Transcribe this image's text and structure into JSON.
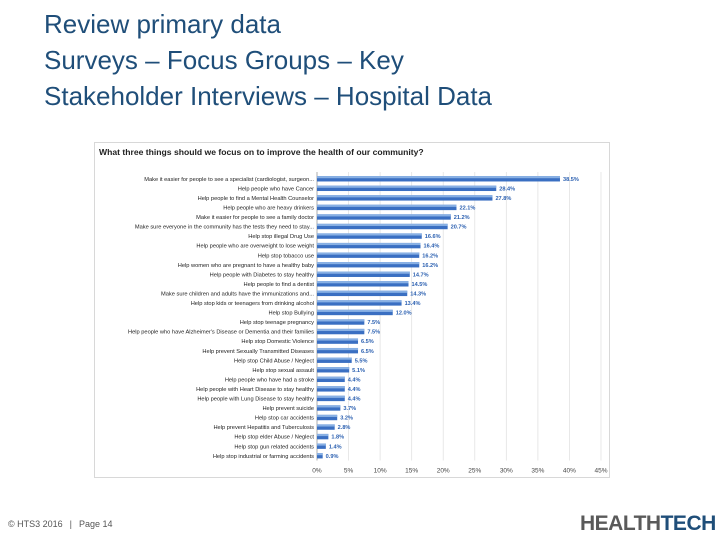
{
  "slide": {
    "title_lines": [
      "Review primary data",
      "Surveys – Focus Groups – Key",
      "Stakeholder Interviews – Hospital Data"
    ]
  },
  "footer": {
    "copyright": "© HTS3 2016",
    "separator": "|",
    "page": "Page 14"
  },
  "logo": {
    "part1": "HEALTH",
    "part2": "TECH",
    "part3": "S",
    "sup": "3"
  },
  "colors": {
    "bar": "#3a6fc2",
    "bar_light": "#9cc0ec",
    "label_blue": "#2a5fb0",
    "title": "#1f4e79"
  },
  "chart_data": {
    "type": "bar",
    "orientation": "horizontal",
    "title": "What three things should we focus on to improve the health of our community?",
    "xlim": [
      0,
      45
    ],
    "xticks": [
      "0%",
      "5%",
      "10%",
      "15%",
      "20%",
      "25%",
      "30%",
      "35%",
      "40%",
      "45%"
    ],
    "grid": true,
    "categories": [
      "Make it easier for people to see a specialist (cardiologist, surgeon...",
      "Help people who have Cancer",
      "Help people to find a Mental Health Counselor",
      "Help people who are heavy drinkers",
      "Make it easier for people to see a family doctor",
      "Make sure everyone in the community has the tests they need to stay...",
      "Help stop illegal Drug Use",
      "Help people who are overweight to lose weight",
      "Help stop tobacco use",
      "Help women who are pregnant to have a healthy baby",
      "Help people with Diabetes to stay healthy",
      "Help people to find a dentist",
      "Make sure children and adults have the immunizations and...",
      "Help stop kids or teenagers from drinking alcohol",
      "Help stop Bullying",
      "Help stop teenage pregnancy",
      "Help people who have Alzheimer's Disease or Dementia and their families",
      "Help stop Domestic Violence",
      "Help prevent Sexually Transmitted Diseases",
      "Help stop Child Abuse / Neglect",
      "Help stop sexual assault",
      "Help people who have had a stroke",
      "Help people with Heart Disease to stay healthy",
      "Help people with Lung Disease to stay healthy",
      "Help prevent suicide",
      "Help stop car accidents",
      "Help prevent Hepatitis and Tuberculosis",
      "Help stop elder Abuse / Neglect",
      "Help stop gun related accidents",
      "Help stop industrial or farming accidents"
    ],
    "values": [
      38.5,
      28.4,
      27.8,
      22.1,
      21.2,
      20.7,
      16.6,
      16.4,
      16.2,
      16.2,
      14.7,
      14.5,
      14.3,
      13.4,
      12.0,
      7.5,
      7.5,
      6.5,
      6.5,
      5.5,
      5.1,
      4.4,
      4.4,
      4.4,
      3.7,
      3.2,
      2.8,
      1.8,
      1.4,
      0.9
    ],
    "data_labels": [
      "38.5%",
      "28.4%",
      "27.8%",
      "22.1%",
      "21.2%",
      "20.7%",
      "16.6%",
      "16.4%",
      "16.2%",
      "16.2%",
      "14.7%",
      "14.5%",
      "14.3%",
      "13.4%",
      "12.0%",
      "7.5%",
      "7.5%",
      "6.5%",
      "6.5%",
      "5.5%",
      "5.1%",
      "4.4%",
      "4.4%",
      "4.4%",
      "3.7%",
      "3.2%",
      "2.8%",
      "1.8%",
      "1.4%",
      "0.9%"
    ]
  }
}
